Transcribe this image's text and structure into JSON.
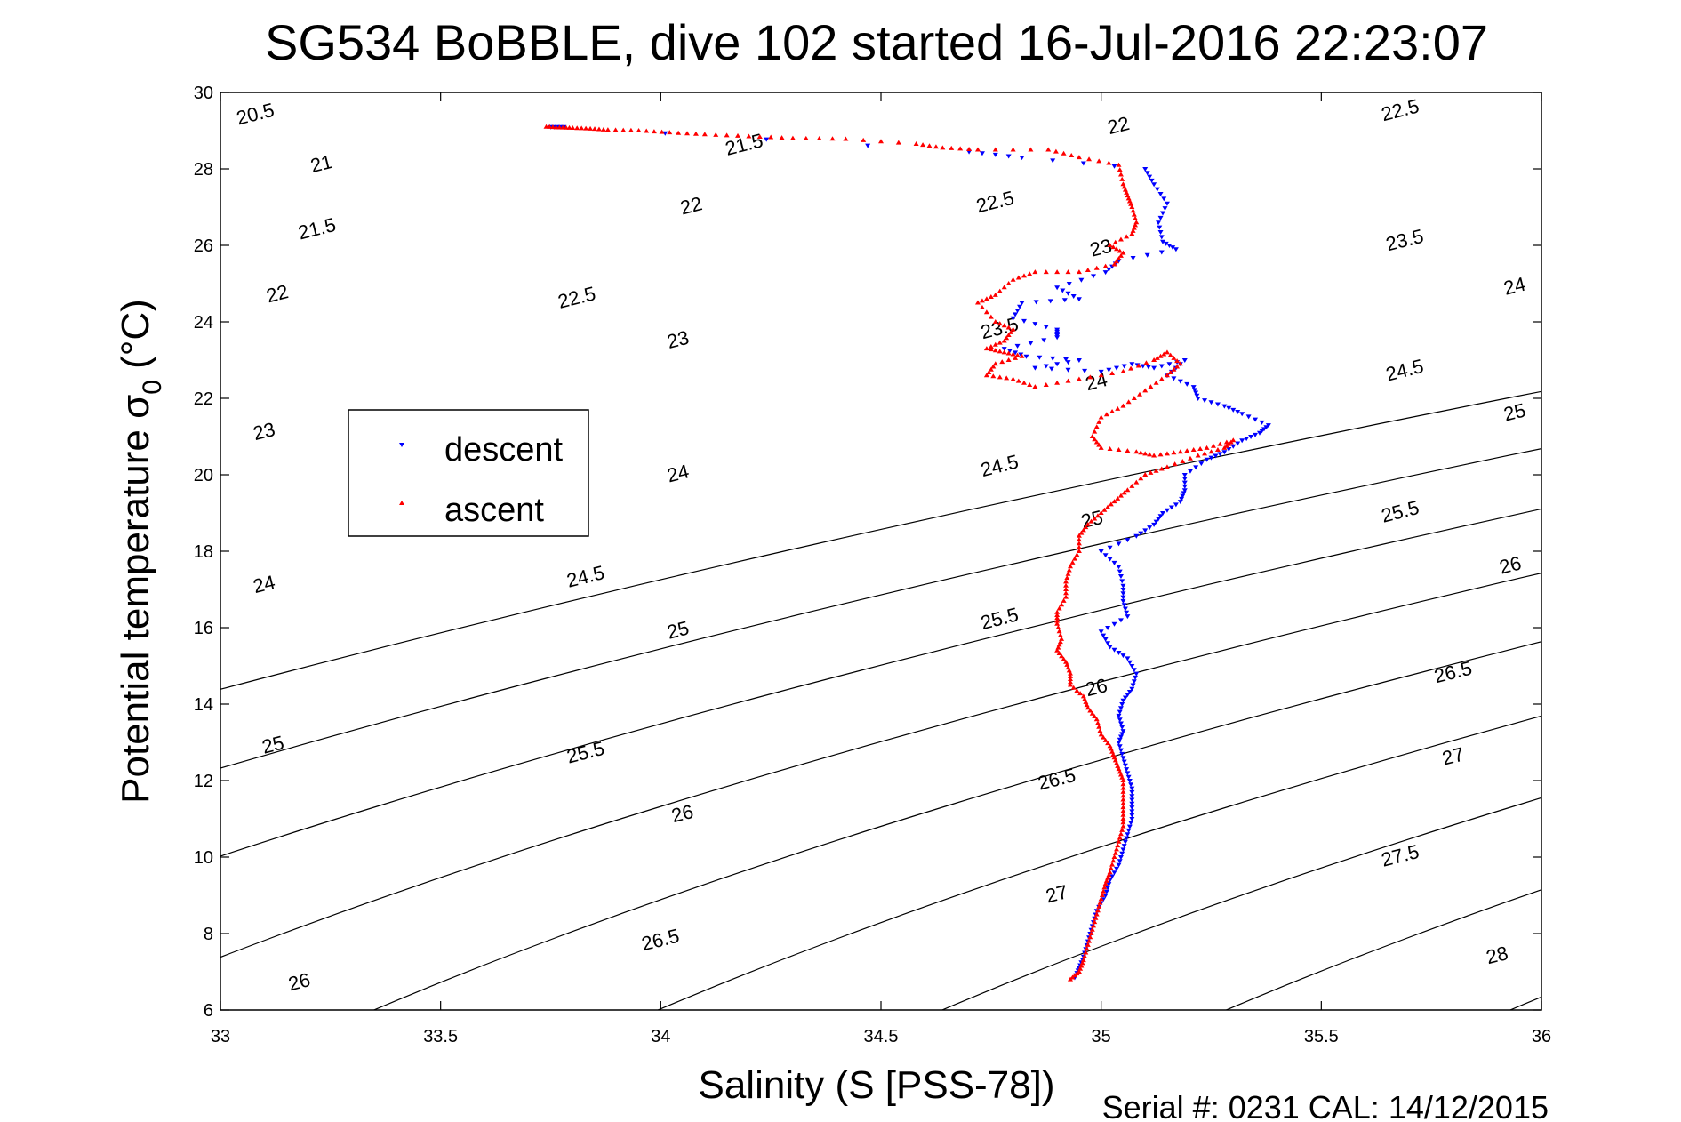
{
  "chart_data": {
    "type": "scatter",
    "title": "SG534 BoBBLE, dive 102 started 16-Jul-2016 22:23:07",
    "xlabel": "Salinity (S [PSS-78])",
    "ylabel_main": "Potential temperature σ",
    "ylabel_sub": "0",
    "ylabel_tail": " (°C)",
    "xlim": [
      33,
      36
    ],
    "ylim": [
      6,
      30
    ],
    "x_ticks": [
      "33",
      "33.5",
      "34",
      "34.5",
      "35",
      "35.5",
      "36"
    ],
    "y_ticks": [
      "6",
      "8",
      "10",
      "12",
      "14",
      "16",
      "18",
      "20",
      "22",
      "24",
      "26",
      "28",
      "30"
    ],
    "grid": false,
    "legend_position": "upper-left",
    "footer": "Serial #: 0231  CAL: 14/12/2015",
    "contours": {
      "levels": [
        20.5,
        21,
        21.5,
        22,
        22.5,
        23,
        23.5,
        24,
        24.5,
        25,
        25.5,
        26,
        26.5,
        27,
        27.5,
        28
      ],
      "color": "#000000"
    },
    "contour_labels": [
      {
        "text": "20.5",
        "s": 33.08,
        "t": 29.4
      },
      {
        "text": "21",
        "s": 33.23,
        "t": 28.1
      },
      {
        "text": "21.5",
        "s": 33.22,
        "t": 26.4
      },
      {
        "text": "22",
        "s": 33.13,
        "t": 24.7
      },
      {
        "text": "23",
        "s": 33.1,
        "t": 21.1
      },
      {
        "text": "24",
        "s": 33.1,
        "t": 17.1
      },
      {
        "text": "25",
        "s": 33.12,
        "t": 12.9
      },
      {
        "text": "26",
        "s": 33.18,
        "t": 6.7
      },
      {
        "text": "21.5",
        "s": 34.19,
        "t": 28.6
      },
      {
        "text": "22",
        "s": 34.07,
        "t": 27.0
      },
      {
        "text": "22.5",
        "s": 33.81,
        "t": 24.6
      },
      {
        "text": "23",
        "s": 34.04,
        "t": 23.5
      },
      {
        "text": "24",
        "s": 34.04,
        "t": 20.0
      },
      {
        "text": "24.5",
        "s": 33.83,
        "t": 17.3
      },
      {
        "text": "25",
        "s": 34.04,
        "t": 15.9
      },
      {
        "text": "25.5",
        "s": 33.83,
        "t": 12.7
      },
      {
        "text": "26",
        "s": 34.05,
        "t": 11.1
      },
      {
        "text": "26.5",
        "s": 34.0,
        "t": 7.8
      },
      {
        "text": "22",
        "s": 35.04,
        "t": 29.1
      },
      {
        "text": "22.5",
        "s": 34.76,
        "t": 27.1
      },
      {
        "text": "23",
        "s": 35.0,
        "t": 25.9
      },
      {
        "text": "23.5",
        "s": 34.77,
        "t": 23.8
      },
      {
        "text": "24",
        "s": 34.99,
        "t": 22.4
      },
      {
        "text": "24.5",
        "s": 34.77,
        "t": 20.2
      },
      {
        "text": "25",
        "s": 34.98,
        "t": 18.8
      },
      {
        "text": "25.5",
        "s": 34.77,
        "t": 16.2
      },
      {
        "text": "26",
        "s": 34.99,
        "t": 14.4
      },
      {
        "text": "26.5",
        "s": 34.9,
        "t": 12.0
      },
      {
        "text": "27",
        "s": 34.9,
        "t": 9.0
      },
      {
        "text": "22.5",
        "s": 35.68,
        "t": 29.5
      },
      {
        "text": "23.5",
        "s": 35.69,
        "t": 26.1
      },
      {
        "text": "24",
        "s": 35.94,
        "t": 24.9
      },
      {
        "text": "24.5",
        "s": 35.69,
        "t": 22.7
      },
      {
        "text": "25",
        "s": 35.94,
        "t": 21.6
      },
      {
        "text": "25.5",
        "s": 35.68,
        "t": 19.0
      },
      {
        "text": "26",
        "s": 35.93,
        "t": 17.6
      },
      {
        "text": "26.5",
        "s": 35.8,
        "t": 14.8
      },
      {
        "text": "27",
        "s": 35.8,
        "t": 12.6
      },
      {
        "text": "27.5",
        "s": 35.68,
        "t": 10.0
      },
      {
        "text": "28",
        "s": 35.9,
        "t": 7.4
      }
    ],
    "series": [
      {
        "name": "descent",
        "color": "#0000ff",
        "marker": "triangle-down",
        "points": [
          [
            33.75,
            29.1
          ],
          [
            33.78,
            29.1
          ],
          [
            34.7,
            28.45
          ],
          [
            34.82,
            28.3
          ],
          [
            35.1,
            28.0
          ],
          [
            35.12,
            27.6
          ],
          [
            35.15,
            27.1
          ],
          [
            35.13,
            26.6
          ],
          [
            35.14,
            26.1
          ],
          [
            35.17,
            25.9
          ],
          [
            35.04,
            25.6
          ],
          [
            35.01,
            25.3
          ],
          [
            34.9,
            24.9
          ],
          [
            34.95,
            24.6
          ],
          [
            34.82,
            24.5
          ],
          [
            34.8,
            24.1
          ],
          [
            34.9,
            23.8
          ],
          [
            34.9,
            23.6
          ],
          [
            34.78,
            23.3
          ],
          [
            34.83,
            23.1
          ],
          [
            34.95,
            23.0
          ],
          [
            34.85,
            22.8
          ],
          [
            35.0,
            22.7
          ],
          [
            35.07,
            22.9
          ],
          [
            35.12,
            22.8
          ],
          [
            35.19,
            23.0
          ],
          [
            35.15,
            22.6
          ],
          [
            35.21,
            22.3
          ],
          [
            35.22,
            22.0
          ],
          [
            35.28,
            21.8
          ],
          [
            35.32,
            21.6
          ],
          [
            35.38,
            21.3
          ],
          [
            35.36,
            21.1
          ],
          [
            35.32,
            20.9
          ],
          [
            35.28,
            20.6
          ],
          [
            35.24,
            20.4
          ],
          [
            35.19,
            20.0
          ],
          [
            35.19,
            19.6
          ],
          [
            35.18,
            19.3
          ],
          [
            35.14,
            19.0
          ],
          [
            35.12,
            18.7
          ],
          [
            35.08,
            18.4
          ],
          [
            35.0,
            18.0
          ],
          [
            35.04,
            17.6
          ],
          [
            35.05,
            17.1
          ],
          [
            35.05,
            16.7
          ],
          [
            35.06,
            16.3
          ],
          [
            35.0,
            15.9
          ],
          [
            35.02,
            15.5
          ],
          [
            35.06,
            15.2
          ],
          [
            35.08,
            14.8
          ],
          [
            35.07,
            14.4
          ],
          [
            35.05,
            14.1
          ],
          [
            35.04,
            13.7
          ],
          [
            35.05,
            13.3
          ],
          [
            35.04,
            13.0
          ],
          [
            35.05,
            12.6
          ],
          [
            35.06,
            12.2
          ],
          [
            35.07,
            11.8
          ],
          [
            35.07,
            11.4
          ],
          [
            35.07,
            11.0
          ],
          [
            35.06,
            10.6
          ],
          [
            35.05,
            10.2
          ],
          [
            35.04,
            9.8
          ],
          [
            35.02,
            9.4
          ],
          [
            35.01,
            9.0
          ],
          [
            34.99,
            8.6
          ],
          [
            34.98,
            8.2
          ],
          [
            34.97,
            7.8
          ],
          [
            34.96,
            7.4
          ],
          [
            34.95,
            7.1
          ],
          [
            34.94,
            6.85
          ]
        ]
      },
      {
        "name": "ascent",
        "color": "#ff0000",
        "marker": "triangle-up",
        "points": [
          [
            33.74,
            29.1
          ],
          [
            33.77,
            29.08
          ],
          [
            33.8,
            29.07
          ],
          [
            33.84,
            29.05
          ],
          [
            33.88,
            29.02
          ],
          [
            33.95,
            29.0
          ],
          [
            34.02,
            28.95
          ],
          [
            34.1,
            28.9
          ],
          [
            34.2,
            28.85
          ],
          [
            34.3,
            28.8
          ],
          [
            34.42,
            28.78
          ],
          [
            34.58,
            28.65
          ],
          [
            34.64,
            28.55
          ],
          [
            34.72,
            28.5
          ],
          [
            34.88,
            28.5
          ],
          [
            34.95,
            28.3
          ],
          [
            35.04,
            28.1
          ],
          [
            35.05,
            27.6
          ],
          [
            35.06,
            27.3
          ],
          [
            35.07,
            27.0
          ],
          [
            35.08,
            26.6
          ],
          [
            35.07,
            26.3
          ],
          [
            35.02,
            26.0
          ],
          [
            35.05,
            25.8
          ],
          [
            35.03,
            25.5
          ],
          [
            34.95,
            25.3
          ],
          [
            34.85,
            25.3
          ],
          [
            34.8,
            25.1
          ],
          [
            34.76,
            24.7
          ],
          [
            34.72,
            24.5
          ],
          [
            34.76,
            24.0
          ],
          [
            34.8,
            23.8
          ],
          [
            34.78,
            23.5
          ],
          [
            34.74,
            23.3
          ],
          [
            34.78,
            23.2
          ],
          [
            34.82,
            23.1
          ],
          [
            34.76,
            22.9
          ],
          [
            34.74,
            22.6
          ],
          [
            34.8,
            22.5
          ],
          [
            34.85,
            22.3
          ],
          [
            34.95,
            22.5
          ],
          [
            35.05,
            22.7
          ],
          [
            35.12,
            23.0
          ],
          [
            35.15,
            23.2
          ],
          [
            35.18,
            22.9
          ],
          [
            35.15,
            22.6
          ],
          [
            35.1,
            22.2
          ],
          [
            35.05,
            21.8
          ],
          [
            35.0,
            21.5
          ],
          [
            34.98,
            21.0
          ],
          [
            35.0,
            20.7
          ],
          [
            35.08,
            20.6
          ],
          [
            35.12,
            20.5
          ],
          [
            35.18,
            20.6
          ],
          [
            35.24,
            20.7
          ],
          [
            35.3,
            20.9
          ],
          [
            35.28,
            20.7
          ],
          [
            35.22,
            20.5
          ],
          [
            35.15,
            20.2
          ],
          [
            35.1,
            20.0
          ],
          [
            35.06,
            19.6
          ],
          [
            35.03,
            19.3
          ],
          [
            35.0,
            19.0
          ],
          [
            34.97,
            18.7
          ],
          [
            34.95,
            18.4
          ],
          [
            34.95,
            18.0
          ],
          [
            34.93,
            17.6
          ],
          [
            34.92,
            17.2
          ],
          [
            34.92,
            16.8
          ],
          [
            34.9,
            16.4
          ],
          [
            34.9,
            16.1
          ],
          [
            34.91,
            15.7
          ],
          [
            34.9,
            15.4
          ],
          [
            34.92,
            15.1
          ],
          [
            34.93,
            14.8
          ],
          [
            34.93,
            14.5
          ],
          [
            34.96,
            14.2
          ],
          [
            34.97,
            13.9
          ],
          [
            34.99,
            13.6
          ],
          [
            35.0,
            13.2
          ],
          [
            35.02,
            12.9
          ],
          [
            35.03,
            12.6
          ],
          [
            35.04,
            12.3
          ],
          [
            35.05,
            12.0
          ],
          [
            35.05,
            11.6
          ],
          [
            35.05,
            11.2
          ],
          [
            35.05,
            10.8
          ],
          [
            35.04,
            10.4
          ],
          [
            35.03,
            10.0
          ],
          [
            35.02,
            9.6
          ],
          [
            35.01,
            9.3
          ],
          [
            35.0,
            8.9
          ],
          [
            34.99,
            8.5
          ],
          [
            34.98,
            8.1
          ],
          [
            34.97,
            7.7
          ],
          [
            34.96,
            7.3
          ],
          [
            34.95,
            7.0
          ],
          [
            34.93,
            6.8
          ]
        ]
      }
    ]
  }
}
